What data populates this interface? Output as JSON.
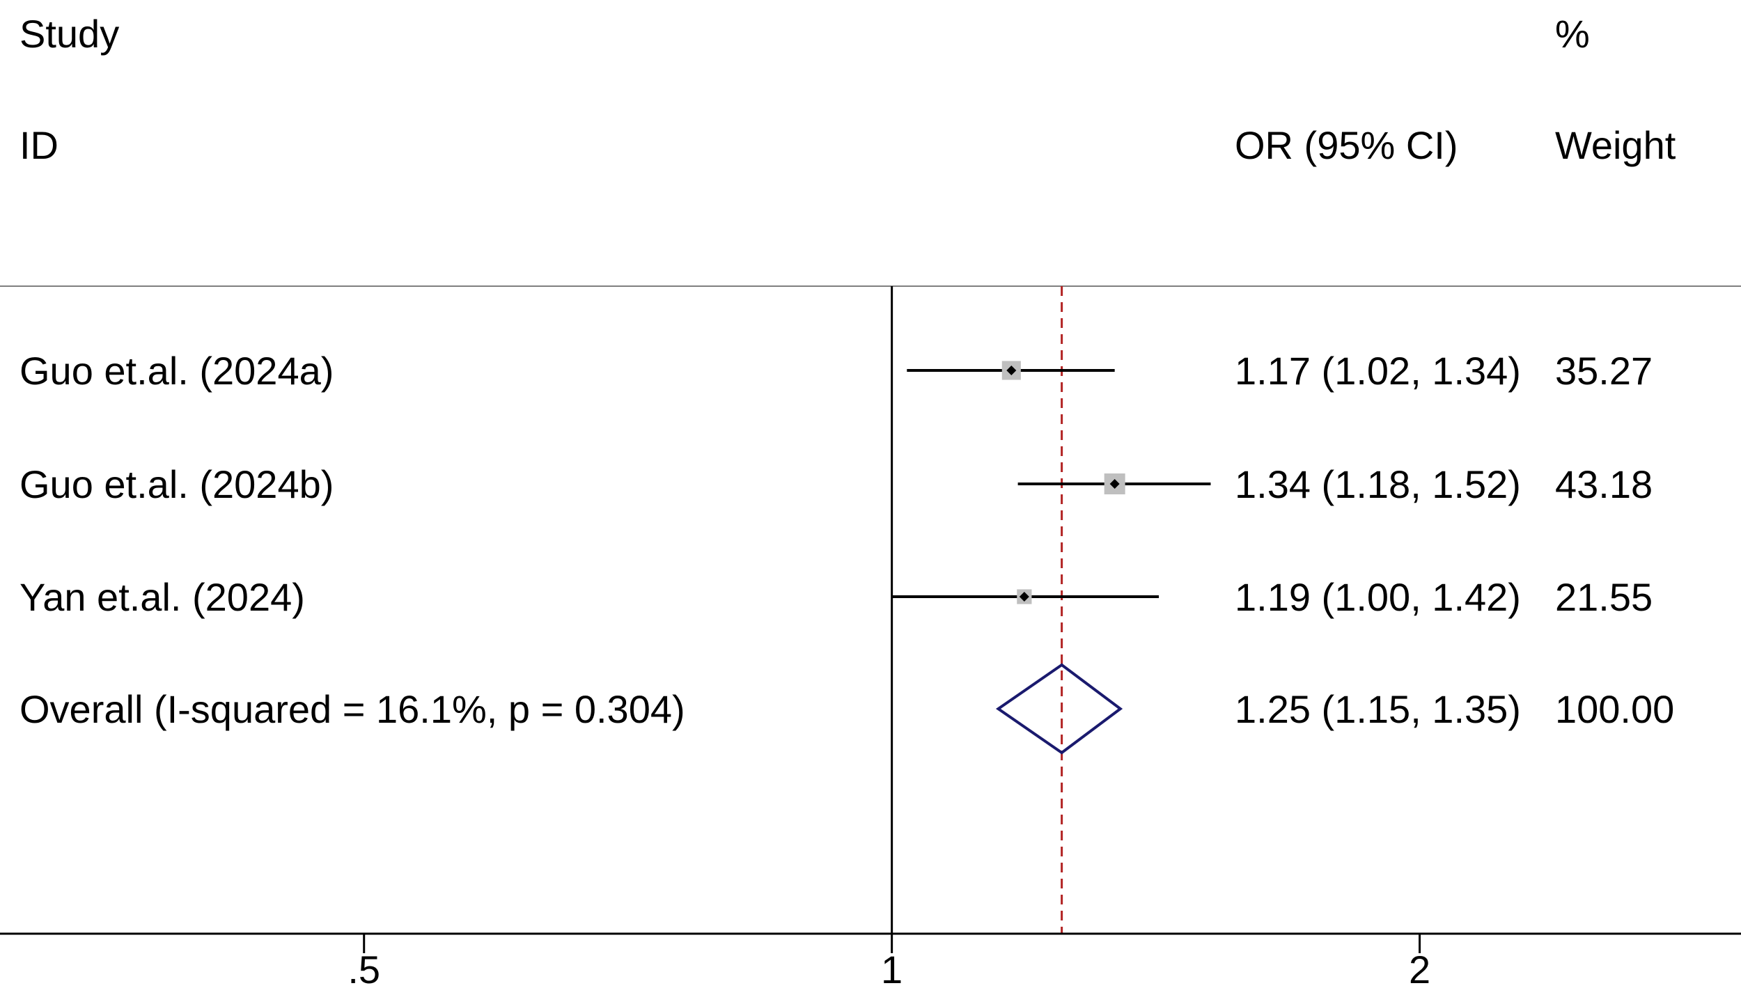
{
  "headers": {
    "study_line1": "Study",
    "study_line2": "ID",
    "or_label": "OR (95% CI)",
    "weight_line1": "%",
    "weight_line2": "Weight"
  },
  "colors": {
    "text": "#000000",
    "ci_line": "#000000",
    "weight_box": "#bfbfbf",
    "point": "#000000",
    "overall_diamond": "#1a1a6e",
    "overall_line": "#b22222",
    "axis": "#000000",
    "header_rule": "#7f7f7f"
  },
  "chart_data": {
    "type": "forest",
    "x_scale": "log",
    "xlim": [
      0.31,
      3.05
    ],
    "reference_line": 1,
    "xticks": [
      0.5,
      1,
      2
    ],
    "xtick_labels": [
      ".5",
      "1",
      "2"
    ],
    "studies": [
      {
        "label": "Guo et.al. (2024a)",
        "or": 1.17,
        "ci_low": 1.02,
        "ci_high": 1.34,
        "weight": 35.27,
        "or_text": "1.17 (1.02, 1.34)",
        "weight_text": "35.27"
      },
      {
        "label": "Guo et.al. (2024b)",
        "or": 1.34,
        "ci_low": 1.18,
        "ci_high": 1.52,
        "weight": 43.18,
        "or_text": "1.34 (1.18, 1.52)",
        "weight_text": "43.18"
      },
      {
        "label": "Yan et.al. (2024)",
        "or": 1.19,
        "ci_low": 1.0,
        "ci_high": 1.42,
        "weight": 21.55,
        "or_text": "1.19 (1.00, 1.42)",
        "weight_text": "21.55"
      }
    ],
    "overall": {
      "label": "Overall  (I-squared = 16.1%, p = 0.304)",
      "or": 1.25,
      "ci_low": 1.15,
      "ci_high": 1.35,
      "weight": 100.0,
      "or_text": "1.25 (1.15, 1.35)",
      "weight_text": "100.00"
    }
  }
}
